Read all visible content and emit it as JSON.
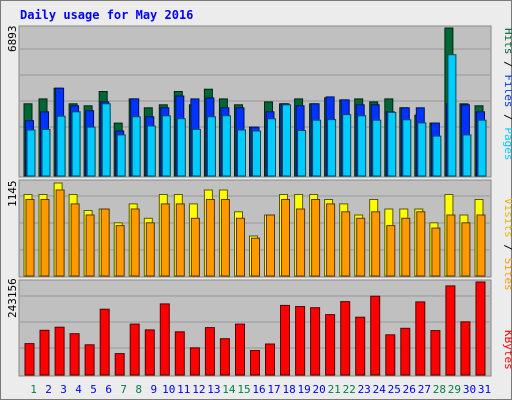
{
  "chart_data": {
    "type": "bar",
    "title": "Daily usage for May 2016",
    "days": [
      "1",
      "2",
      "3",
      "4",
      "5",
      "6",
      "7",
      "8",
      "9",
      "10",
      "11",
      "12",
      "13",
      "14",
      "15",
      "16",
      "17",
      "18",
      "19",
      "20",
      "21",
      "22",
      "23",
      "24",
      "25",
      "26",
      "27",
      "28",
      "29",
      "30",
      "31"
    ],
    "weekend_days": [
      1,
      7,
      8,
      14,
      15,
      21,
      22,
      28,
      29
    ],
    "panels": [
      {
        "key": "pages_files_hits",
        "max_label": "6893",
        "ymax": 6893,
        "series": [
          {
            "name": "Hits",
            "color": "#006633",
            "values": [
              3361,
              3591,
              4088,
              3361,
              3269,
              3935,
              2462,
              3591,
              3177,
              3315,
              3935,
              3315,
              4042,
              3591,
              3315,
              2279,
              3453,
              3361,
              3591,
              3361,
              3637,
              3545,
              3591,
              3453,
              3591,
              3177,
              2831,
              2463,
              6893,
              3361,
              3269
            ]
          },
          {
            "name": "Files",
            "color": "#0033ff",
            "values": [
              2577,
              2989,
              4088,
              3269,
              3039,
              3453,
              2096,
              3591,
              2756,
              3177,
              3728,
              3591,
              3635,
              3177,
              3177,
              2279,
              2989,
              3361,
              3269,
              3361,
              3682,
              3545,
              3315,
              3315,
              2989,
              3177,
              3177,
              2463,
              3361,
              3315,
              2989
            ]
          },
          {
            "name": "Pages",
            "color": "#00ccff",
            "values": [
              2141,
              2171,
              2784,
              2989,
              2279,
              3361,
              1913,
              2756,
              2327,
              2805,
              2667,
              2171,
              2757,
              2805,
              2141,
              2096,
              2663,
              3315,
              2117,
              2597,
              2629,
              2859,
              2805,
              2597,
              2963,
              2617,
              2471,
              1860,
              5650,
              1913,
              2597
            ]
          }
        ]
      },
      {
        "key": "visits_sites",
        "max_label": "1145",
        "ymax": 1145,
        "series": [
          {
            "name": "Visits",
            "color": "#ffff00",
            "values": [
              1003,
              1003,
              1145,
              1003,
              806,
              825,
              655,
              888,
              711,
              1003,
              1003,
              888,
              1059,
              1059,
              790,
              493,
              751,
              1003,
              1003,
              1003,
              942,
              888,
              751,
              942,
              825,
              825,
              825,
              655,
              1003,
              751,
              942
            ]
          },
          {
            "name": "Sites",
            "color": "#ff9900",
            "values": [
              942,
              942,
              1059,
              888,
              751,
              825,
              621,
              825,
              655,
              888,
              888,
              711,
              942,
              942,
              711,
              466,
              751,
              942,
              825,
              942,
              888,
              790,
              711,
              790,
              621,
              711,
              790,
              590,
              751,
              655,
              751
            ]
          }
        ]
      },
      {
        "key": "kbytes",
        "max_label": "243156",
        "ymax": 243156,
        "series": [
          {
            "name": "KBytes",
            "color": "#ff0000",
            "values": [
              82000,
              117000,
              125000,
              108000,
              79000,
              172000,
              56000,
              133000,
              118000,
              186000,
              113000,
              71000,
              124000,
              95000,
              133000,
              64000,
              81000,
              182000,
              179000,
              176000,
              158000,
              192000,
              151000,
              206000,
              105000,
              122000,
              191000,
              116000,
              233000,
              139000,
              243156
            ]
          }
        ]
      }
    ],
    "axis_labels": {
      "panel1": [
        "Hits",
        "/",
        "Files",
        "/",
        "Pages"
      ],
      "panel2": [
        "Visits",
        "/",
        "Sites"
      ],
      "panel3": [
        "KBytes"
      ]
    },
    "colors": {
      "title": "#0000ff",
      "plot_bg": "#c0c0c0",
      "frame": "#999999",
      "weekday_label": "#0000ff",
      "weekend_label": "#00804a"
    }
  }
}
